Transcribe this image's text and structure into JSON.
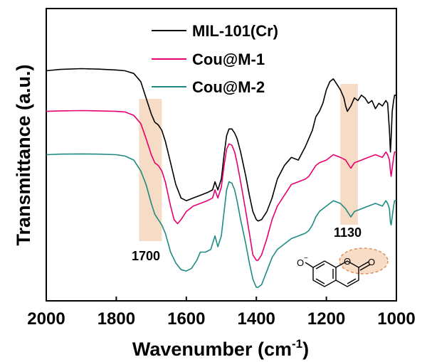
{
  "chart_data": {
    "type": "line",
    "xlabel": "Wavenumber (cm",
    "xlabel_sup": "-1",
    "xlabel_end": ")",
    "ylabel": "Transmittance (a.u.)",
    "xlim": [
      2000,
      1000
    ],
    "x_reversed": true,
    "x_ticks": [
      "2000",
      "1800",
      "1600",
      "1400",
      "1200",
      "1000"
    ],
    "y_ticks_shown": false,
    "grid": false,
    "legend_position": "top-right",
    "series": [
      {
        "name": "MIL-101(Cr)",
        "color": "#000000",
        "x": [
          2000,
          1960,
          1900,
          1850,
          1800,
          1775,
          1750,
          1730,
          1715,
          1700,
          1690,
          1680,
          1670,
          1660,
          1645,
          1630,
          1615,
          1600,
          1580,
          1560,
          1540,
          1525,
          1518,
          1510,
          1500,
          1492,
          1485,
          1478,
          1470,
          1462,
          1455,
          1445,
          1430,
          1420,
          1410,
          1400,
          1395,
          1385,
          1370,
          1355,
          1340,
          1320,
          1300,
          1280,
          1260,
          1250,
          1240,
          1230,
          1220,
          1210,
          1200,
          1190,
          1180,
          1170,
          1160,
          1150,
          1145,
          1140,
          1130,
          1120,
          1110,
          1100,
          1090,
          1080,
          1070,
          1060,
          1050,
          1040,
          1030,
          1025,
          1020,
          1017,
          1015,
          1012,
          1008,
          1005,
          1000
        ],
        "y": [
          0.77,
          0.775,
          0.778,
          0.776,
          0.773,
          0.77,
          0.76,
          0.73,
          0.67,
          0.61,
          0.58,
          0.57,
          0.55,
          0.51,
          0.43,
          0.35,
          0.3,
          0.29,
          0.3,
          0.31,
          0.32,
          0.33,
          0.36,
          0.33,
          0.37,
          0.46,
          0.53,
          0.555,
          0.555,
          0.54,
          0.52,
          0.47,
          0.38,
          0.31,
          0.25,
          0.22,
          0.215,
          0.22,
          0.25,
          0.3,
          0.37,
          0.42,
          0.45,
          0.44,
          0.49,
          0.52,
          0.55,
          0.6,
          0.62,
          0.65,
          0.7,
          0.73,
          0.74,
          0.72,
          0.7,
          0.67,
          0.64,
          0.62,
          0.64,
          0.67,
          0.66,
          0.68,
          0.67,
          0.65,
          0.66,
          0.63,
          0.65,
          0.64,
          0.66,
          0.65,
          0.55,
          0.47,
          0.52,
          0.62,
          0.66,
          0.68,
          0.68
        ]
      },
      {
        "name": "Cou@M-1",
        "color": "#e8006e",
        "x": [
          2000,
          1960,
          1900,
          1850,
          1800,
          1775,
          1750,
          1730,
          1715,
          1700,
          1690,
          1680,
          1670,
          1660,
          1645,
          1635,
          1625,
          1615,
          1600,
          1580,
          1560,
          1540,
          1525,
          1518,
          1510,
          1500,
          1492,
          1485,
          1478,
          1470,
          1462,
          1455,
          1445,
          1430,
          1420,
          1410,
          1400,
          1395,
          1385,
          1370,
          1355,
          1340,
          1320,
          1300,
          1280,
          1260,
          1250,
          1240,
          1230,
          1220,
          1200,
          1180,
          1160,
          1145,
          1140,
          1130,
          1120,
          1100,
          1080,
          1060,
          1040,
          1030,
          1025,
          1020,
          1017,
          1015,
          1012,
          1008,
          1005,
          1000
        ],
        "y": [
          0.62,
          0.622,
          0.623,
          0.622,
          0.62,
          0.618,
          0.605,
          0.575,
          0.52,
          0.46,
          0.43,
          0.42,
          0.4,
          0.36,
          0.27,
          0.22,
          0.205,
          0.22,
          0.25,
          0.27,
          0.28,
          0.29,
          0.3,
          0.33,
          0.3,
          0.34,
          0.42,
          0.48,
          0.5,
          0.495,
          0.47,
          0.43,
          0.36,
          0.25,
          0.17,
          0.09,
          0.07,
          0.07,
          0.09,
          0.15,
          0.22,
          0.27,
          0.31,
          0.35,
          0.36,
          0.37,
          0.38,
          0.4,
          0.42,
          0.43,
          0.44,
          0.46,
          0.45,
          0.44,
          0.43,
          0.41,
          0.43,
          0.44,
          0.45,
          0.46,
          0.45,
          0.47,
          0.46,
          0.44,
          0.4,
          0.38,
          0.41,
          0.45,
          0.47,
          0.47
        ]
      },
      {
        "name": "Cou@M-2",
        "color": "#1e8c82",
        "x": [
          2000,
          1960,
          1900,
          1850,
          1800,
          1775,
          1750,
          1730,
          1715,
          1700,
          1690,
          1680,
          1670,
          1660,
          1645,
          1630,
          1615,
          1600,
          1585,
          1570,
          1560,
          1545,
          1530,
          1518,
          1510,
          1500,
          1492,
          1485,
          1478,
          1470,
          1462,
          1455,
          1445,
          1430,
          1420,
          1410,
          1400,
          1395,
          1385,
          1370,
          1355,
          1340,
          1320,
          1300,
          1280,
          1260,
          1250,
          1240,
          1230,
          1220,
          1200,
          1180,
          1160,
          1145,
          1140,
          1130,
          1120,
          1100,
          1080,
          1060,
          1040,
          1030,
          1025,
          1020,
          1017,
          1015,
          1012,
          1008,
          1005,
          1000
        ],
        "y": [
          0.46,
          0.462,
          0.463,
          0.462,
          0.46,
          0.455,
          0.44,
          0.4,
          0.35,
          0.28,
          0.24,
          0.22,
          0.2,
          0.17,
          0.1,
          0.06,
          0.035,
          0.03,
          0.04,
          0.07,
          0.1,
          0.1,
          0.11,
          0.16,
          0.12,
          0.16,
          0.25,
          0.33,
          0.36,
          0.355,
          0.33,
          0.29,
          0.22,
          0.13,
          0.06,
          0.0,
          -0.03,
          -0.03,
          -0.02,
          0.03,
          0.08,
          0.11,
          0.13,
          0.15,
          0.16,
          0.17,
          0.18,
          0.2,
          0.23,
          0.25,
          0.27,
          0.29,
          0.28,
          0.26,
          0.25,
          0.23,
          0.25,
          0.26,
          0.27,
          0.28,
          0.27,
          0.29,
          0.28,
          0.26,
          0.21,
          0.2,
          0.23,
          0.27,
          0.29,
          0.29
        ]
      }
    ],
    "highlights": [
      {
        "label": "1700",
        "range": [
          1735,
          1670
        ],
        "color": "#f6dcc4"
      },
      {
        "label": "1130",
        "range": [
          1160,
          1110
        ],
        "color": "#f6dcc4"
      }
    ],
    "molecule": {
      "name": "7-hydroxycoumarin anion",
      "o_minus_label": "O",
      "o_minus_charge": "−",
      "ring_o_label": "O",
      "carbonyl_o_label": "O",
      "highlight_color": "#f0b084"
    }
  }
}
